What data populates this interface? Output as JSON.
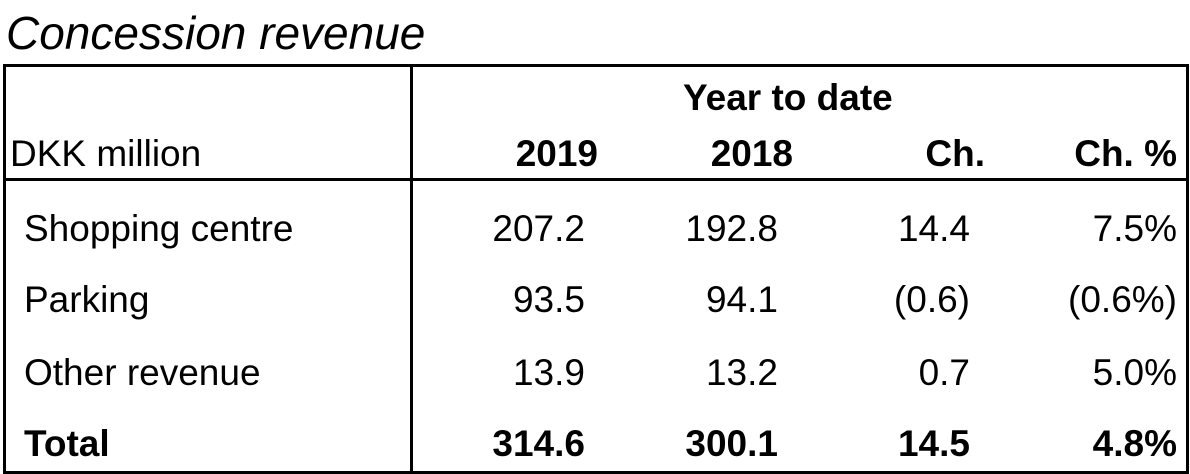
{
  "title": "Concession revenue",
  "header": {
    "group": "Year to date",
    "unit": "DKK million",
    "columns": [
      "2019",
      "2018",
      "Ch.",
      "Ch. %"
    ]
  },
  "rows": [
    {
      "label": "Shopping centre",
      "values": [
        "207.2",
        "192.8",
        "14.4",
        "7.5%"
      ]
    },
    {
      "label": "Parking",
      "values": [
        "93.5",
        "94.1",
        "(0.6)",
        "(0.6%)"
      ]
    },
    {
      "label": "Other revenue",
      "values": [
        "13.9",
        "13.2",
        "0.7",
        "5.0%"
      ]
    },
    {
      "label": "Total",
      "values": [
        "314.6",
        "300.1",
        "14.5",
        "4.8%"
      ]
    }
  ]
}
